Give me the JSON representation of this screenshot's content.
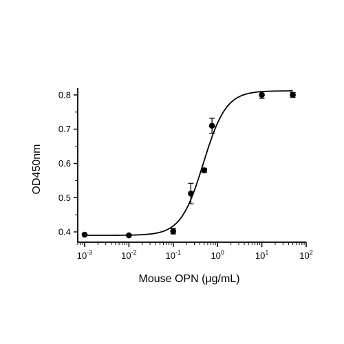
{
  "chart_data": {
    "type": "scatter",
    "title": "",
    "xlabel": "Mouse OPN (μg/mL)",
    "ylabel": "OD450nm",
    "x_scale": "log",
    "xlim": [
      0.0007,
      100
    ],
    "ylim": [
      0.37,
      0.82
    ],
    "grid": false,
    "legend": "none",
    "x_ticks": [
      {
        "value": 0.001,
        "base": "10",
        "exp": "-3"
      },
      {
        "value": 0.01,
        "base": "10",
        "exp": "-2"
      },
      {
        "value": 0.1,
        "base": "10",
        "exp": "-1"
      },
      {
        "value": 1,
        "base": "10",
        "exp": "0"
      },
      {
        "value": 10,
        "base": "10",
        "exp": "1"
      },
      {
        "value": 100,
        "base": "10",
        "exp": "2"
      }
    ],
    "y_ticks": [
      {
        "value": 0.4,
        "label": "0.4"
      },
      {
        "value": 0.5,
        "label": "0.5"
      },
      {
        "value": 0.6,
        "label": "0.6"
      },
      {
        "value": 0.7,
        "label": "0.7"
      },
      {
        "value": 0.8,
        "label": "0.8"
      }
    ],
    "series": [
      {
        "points": [
          {
            "x": 0.001,
            "y": 0.392,
            "err": 0.0
          },
          {
            "x": 0.01,
            "y": 0.39,
            "err": 0.0
          },
          {
            "x": 0.1,
            "y": 0.402,
            "err": 0.008
          },
          {
            "x": 0.25,
            "y": 0.512,
            "err": 0.03
          },
          {
            "x": 0.5,
            "y": 0.58,
            "err": 0.006
          },
          {
            "x": 0.75,
            "y": 0.71,
            "err": 0.022
          },
          {
            "x": 10,
            "y": 0.8,
            "err": 0.01
          },
          {
            "x": 50,
            "y": 0.8,
            "err": 0.007
          }
        ],
        "fit": {
          "model": "4PL",
          "bottom": 0.39,
          "top": 0.812,
          "ec50": 0.48,
          "hill": 1.7
        }
      }
    ],
    "colors": {
      "marker": "#000000",
      "line": "#000000"
    }
  }
}
